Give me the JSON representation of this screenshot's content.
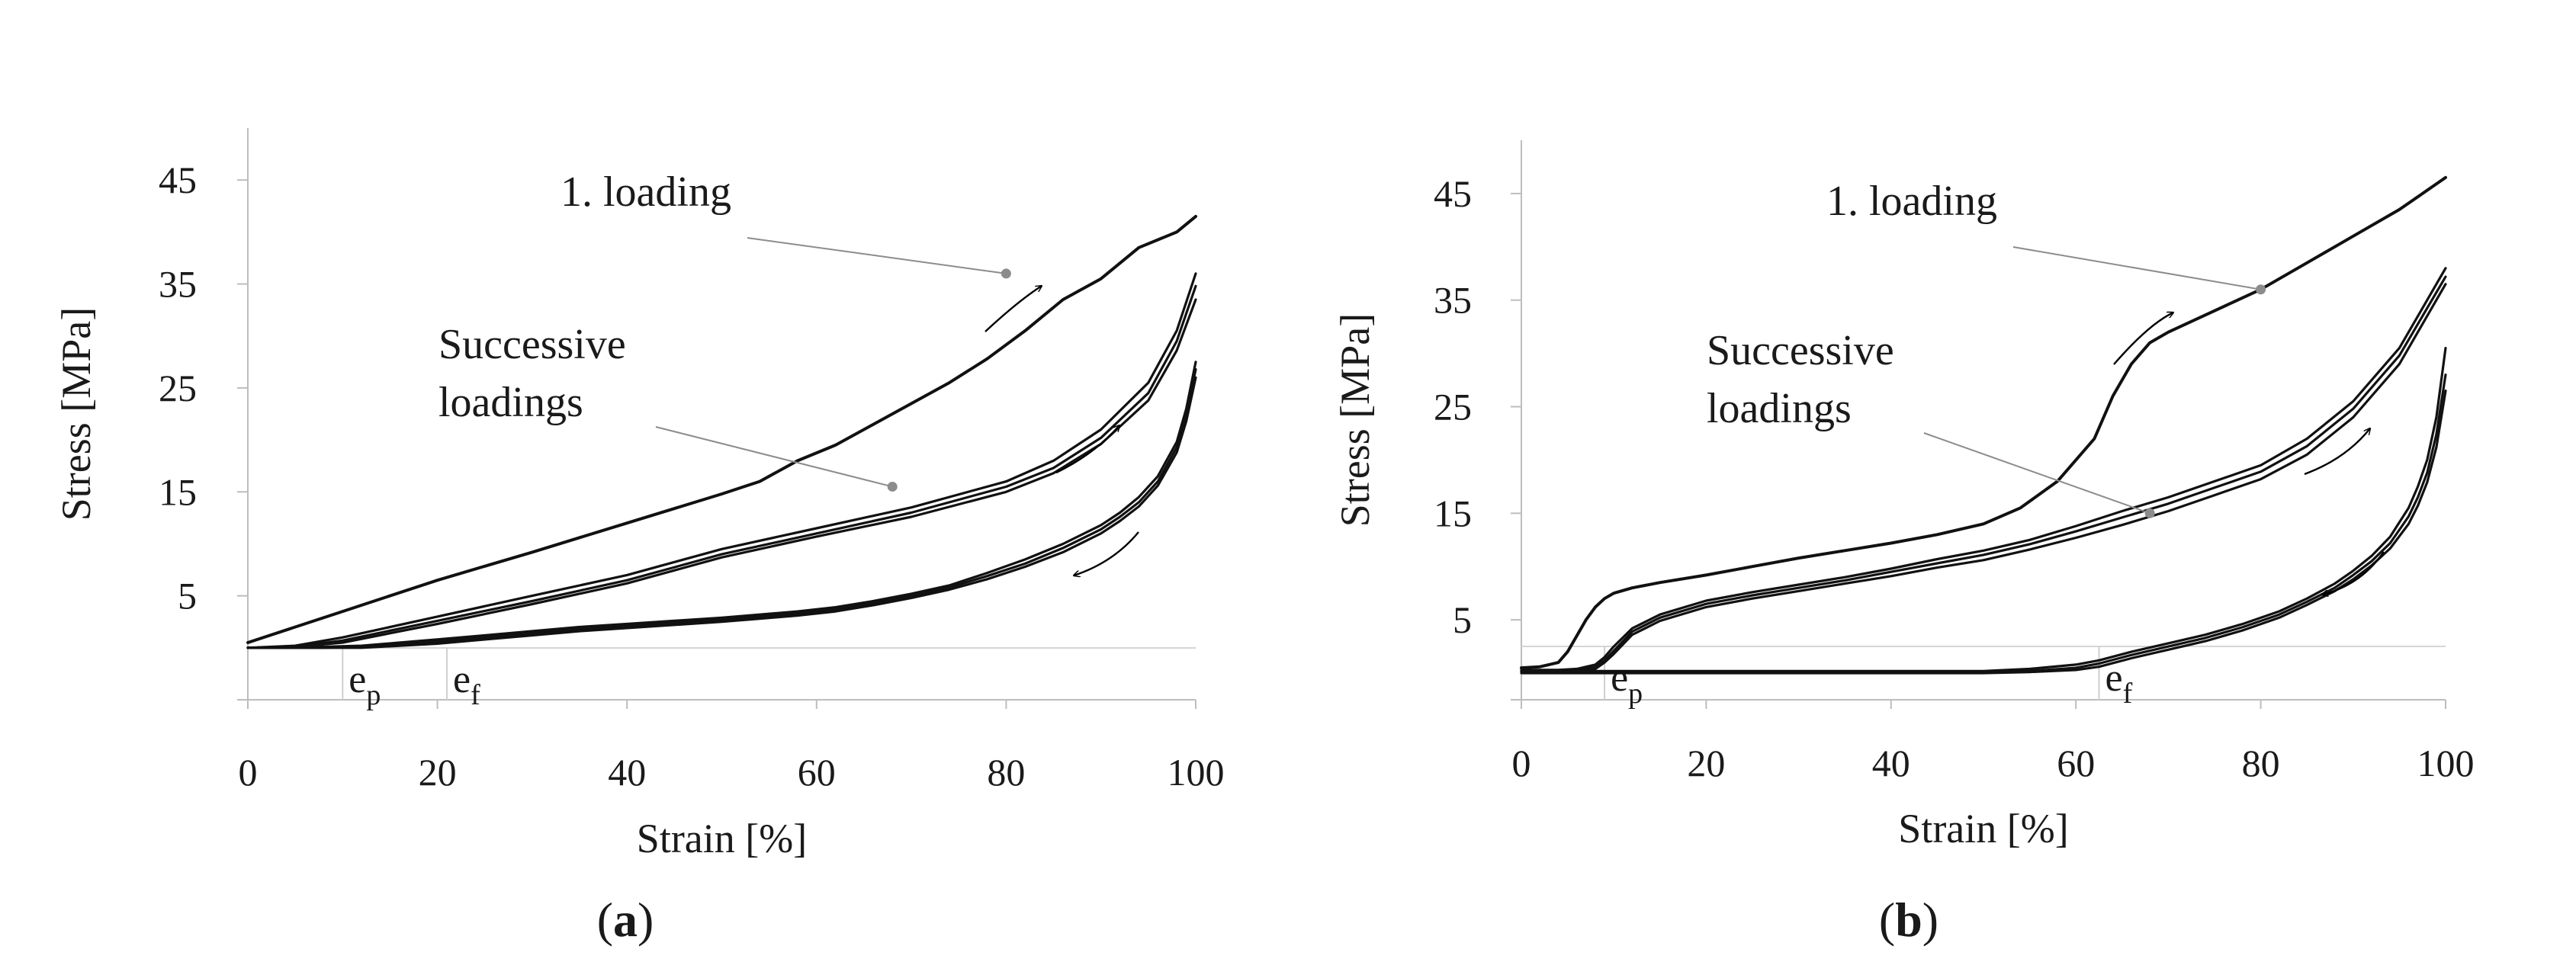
{
  "chart_data": [
    {
      "type": "line",
      "panel_label": "a",
      "xlabel": "Strain [%]",
      "ylabel": "Stress [MPa]",
      "xlim": [
        0,
        100
      ],
      "ylim": [
        -5,
        50
      ],
      "xticks": [
        "0",
        "20",
        "40",
        "60",
        "80",
        "100"
      ],
      "yticks": [
        "5",
        "15",
        "25",
        "35",
        "45"
      ],
      "markers": [
        {
          "base": "e",
          "sub": "p",
          "x": 10
        },
        {
          "base": "e",
          "sub": "f",
          "x": 21
        }
      ],
      "annotations": [
        {
          "lines": [
            "1. loading"
          ],
          "point": [
            80,
            36
          ]
        },
        {
          "lines": [
            "Successive",
            "loadings"
          ],
          "point": [
            68,
            15.5
          ]
        }
      ],
      "series": [
        {
          "name": "1. loading",
          "x": [
            0,
            10,
            20,
            30,
            40,
            50,
            54,
            58,
            62,
            66,
            70,
            74,
            78,
            82,
            86,
            90,
            94,
            98,
            100
          ],
          "y": [
            0.5,
            3.5,
            6.5,
            9.2,
            12.0,
            14.8,
            16.0,
            18.0,
            19.5,
            21.5,
            23.5,
            25.5,
            27.8,
            30.5,
            33.5,
            35.5,
            38.5,
            40.0,
            41.5
          ]
        },
        {
          "name": "Successive loading 1",
          "x": [
            0,
            5,
            10,
            20,
            30,
            40,
            50,
            60,
            70,
            80,
            85,
            90,
            95,
            98,
            100
          ],
          "y": [
            0,
            0.2,
            1.0,
            3.0,
            5.0,
            7.0,
            9.5,
            11.5,
            13.5,
            16.0,
            18.0,
            21.0,
            25.5,
            30.5,
            36.0
          ]
        },
        {
          "name": "Successive loading 2",
          "x": [
            0,
            5,
            10,
            20,
            30,
            40,
            50,
            60,
            70,
            80,
            85,
            90,
            95,
            98,
            100
          ],
          "y": [
            0,
            0.1,
            0.7,
            2.6,
            4.5,
            6.5,
            9.0,
            11.0,
            13.0,
            15.5,
            17.3,
            20.2,
            24.5,
            29.5,
            34.8
          ]
        },
        {
          "name": "Successive loading 3",
          "x": [
            0,
            5,
            10,
            20,
            30,
            40,
            50,
            60,
            70,
            80,
            85,
            90,
            95,
            98,
            100
          ],
          "y": [
            0,
            0.1,
            0.5,
            2.3,
            4.2,
            6.2,
            8.7,
            10.7,
            12.6,
            15.0,
            16.8,
            19.6,
            23.8,
            28.6,
            33.5
          ]
        },
        {
          "name": "Unloading 1",
          "x": [
            100,
            99,
            98,
            96,
            94,
            92,
            90,
            86,
            82,
            78,
            74,
            70,
            66,
            62,
            58,
            54,
            50,
            45,
            40,
            35,
            30,
            25,
            20,
            16,
            12,
            8,
            4,
            0
          ],
          "y": [
            27.5,
            23.0,
            19.8,
            16.5,
            14.5,
            13.0,
            11.8,
            10.0,
            8.5,
            7.2,
            6.0,
            5.2,
            4.5,
            3.9,
            3.5,
            3.2,
            2.9,
            2.6,
            2.3,
            2.0,
            1.6,
            1.2,
            0.8,
            0.5,
            0.2,
            0.1,
            0,
            0
          ]
        },
        {
          "name": "Unloading 2",
          "x": [
            100,
            99,
            98,
            96,
            94,
            92,
            90,
            86,
            82,
            78,
            74,
            70,
            66,
            62,
            58,
            54,
            50,
            45,
            40,
            35,
            30,
            25,
            20,
            16,
            12,
            8,
            4,
            0
          ],
          "y": [
            26.8,
            22.4,
            19.3,
            16.0,
            14.0,
            12.6,
            11.4,
            9.6,
            8.1,
            6.9,
            5.8,
            5.0,
            4.3,
            3.7,
            3.3,
            3.0,
            2.7,
            2.4,
            2.1,
            1.8,
            1.4,
            1.0,
            0.6,
            0.3,
            0.1,
            0,
            0,
            0
          ]
        },
        {
          "name": "Unloading 3",
          "x": [
            100,
            99,
            98,
            96,
            94,
            92,
            90,
            86,
            82,
            78,
            74,
            70,
            66,
            62,
            58,
            54,
            50,
            45,
            40,
            35,
            30,
            25,
            20,
            16,
            12,
            8,
            4,
            0
          ],
          "y": [
            26.0,
            21.8,
            18.8,
            15.6,
            13.6,
            12.2,
            11.0,
            9.2,
            7.8,
            6.6,
            5.6,
            4.8,
            4.1,
            3.5,
            3.1,
            2.8,
            2.5,
            2.2,
            1.9,
            1.6,
            1.2,
            0.8,
            0.4,
            0.2,
            0,
            0,
            0,
            0
          ]
        }
      ]
    },
    {
      "type": "line",
      "panel_label": "b",
      "xlabel": "Strain [%]",
      "ylabel": "Stress [MPa]",
      "xlim": [
        0,
        100
      ],
      "ylim": [
        -2.5,
        50
      ],
      "xticks": [
        "0",
        "20",
        "40",
        "60",
        "80",
        "100"
      ],
      "yticks": [
        "5",
        "15",
        "25",
        "35",
        "45"
      ],
      "markers": [
        {
          "base": "e",
          "sub": "p",
          "x": 9
        },
        {
          "base": "e",
          "sub": "f",
          "x": 62.5
        }
      ],
      "annotations": [
        {
          "lines": [
            "1. loading"
          ],
          "point": [
            80,
            36
          ]
        },
        {
          "lines": [
            "Successive",
            "loadings"
          ],
          "point": [
            68,
            15
          ]
        }
      ],
      "series": [
        {
          "name": "1. loading",
          "x": [
            0,
            2,
            4,
            5,
            6,
            7,
            8,
            9,
            10,
            12,
            15,
            20,
            25,
            30,
            35,
            40,
            45,
            50,
            54,
            58,
            62,
            64,
            66,
            68,
            70,
            75,
            80,
            85,
            90,
            95,
            100
          ],
          "y": [
            0.5,
            0.6,
            1.0,
            2.0,
            3.5,
            5.0,
            6.2,
            7.0,
            7.5,
            8.0,
            8.5,
            9.2,
            10.0,
            10.8,
            11.5,
            12.2,
            13.0,
            14.0,
            15.5,
            18.0,
            22.0,
            26.0,
            29.0,
            31.0,
            32.0,
            34.0,
            36.0,
            38.5,
            41.0,
            43.5,
            46.5
          ]
        },
        {
          "name": "Successive loading 1",
          "x": [
            0,
            4,
            6,
            8,
            9,
            10,
            12,
            15,
            20,
            25,
            30,
            35,
            40,
            45,
            50,
            55,
            60,
            65,
            70,
            75,
            80,
            85,
            90,
            95,
            100
          ],
          "y": [
            0.3,
            0.3,
            0.4,
            0.8,
            1.5,
            2.5,
            4.2,
            5.5,
            6.8,
            7.6,
            8.3,
            9.0,
            9.8,
            10.7,
            11.5,
            12.5,
            13.8,
            15.2,
            16.5,
            18.0,
            19.5,
            22.0,
            25.5,
            30.5,
            38.0
          ]
        },
        {
          "name": "Successive loading 2",
          "x": [
            0,
            4,
            6,
            8,
            9,
            10,
            12,
            15,
            20,
            25,
            30,
            35,
            40,
            45,
            50,
            55,
            60,
            65,
            70,
            75,
            80,
            85,
            90,
            95,
            100
          ],
          "y": [
            0.2,
            0.2,
            0.3,
            0.6,
            1.2,
            2.1,
            3.9,
            5.2,
            6.5,
            7.3,
            8.0,
            8.7,
            9.5,
            10.3,
            11.1,
            12.1,
            13.3,
            14.6,
            15.9,
            17.4,
            18.9,
            21.3,
            24.8,
            29.8,
            37.2
          ]
        },
        {
          "name": "Successive loading 3",
          "x": [
            0,
            4,
            6,
            8,
            9,
            10,
            12,
            15,
            20,
            25,
            30,
            35,
            40,
            45,
            50,
            55,
            60,
            65,
            70,
            75,
            80,
            85,
            90,
            95,
            100
          ],
          "y": [
            0.2,
            0.2,
            0.2,
            0.4,
            1.0,
            1.8,
            3.6,
            4.9,
            6.2,
            7.0,
            7.7,
            8.4,
            9.1,
            9.9,
            10.6,
            11.6,
            12.7,
            13.9,
            15.2,
            16.7,
            18.2,
            20.5,
            24.0,
            29.0,
            36.5
          ]
        },
        {
          "name": "Unloading 1",
          "x": [
            100,
            99,
            98,
            97,
            96,
            94,
            92,
            90,
            88,
            85,
            82,
            78,
            74,
            70,
            66,
            62.5,
            60,
            55,
            50,
            40,
            30,
            20,
            10,
            0
          ],
          "y": [
            30.5,
            24.0,
            20.0,
            17.5,
            15.5,
            12.8,
            11.0,
            9.6,
            8.4,
            7.0,
            5.8,
            4.6,
            3.6,
            2.8,
            2.0,
            1.2,
            0.8,
            0.4,
            0.2,
            0.2,
            0.2,
            0.2,
            0.2,
            0.2
          ]
        },
        {
          "name": "Unloading 2",
          "x": [
            100,
            99,
            98,
            97,
            96,
            94,
            92,
            90,
            88,
            85,
            82,
            78,
            74,
            70,
            66,
            62.5,
            60,
            55,
            50,
            40,
            30,
            20,
            10,
            0
          ],
          "y": [
            28.0,
            22.4,
            18.8,
            16.5,
            14.7,
            12.2,
            10.5,
            9.2,
            8.0,
            6.7,
            5.5,
            4.3,
            3.3,
            2.5,
            1.7,
            0.9,
            0.5,
            0.2,
            0.1,
            0.1,
            0.1,
            0.1,
            0.1,
            0.1
          ]
        },
        {
          "name": "Unloading 3",
          "x": [
            100,
            99,
            98,
            97,
            96,
            94,
            92,
            90,
            88,
            85,
            82,
            78,
            74,
            70,
            66,
            62.5,
            60,
            55,
            50,
            40,
            30,
            20,
            10,
            0
          ],
          "y": [
            26.5,
            21.2,
            17.9,
            15.7,
            14.0,
            11.7,
            10.1,
            8.8,
            7.7,
            6.4,
            5.2,
            4.0,
            3.0,
            2.2,
            1.4,
            0.6,
            0.3,
            0.1,
            0,
            0,
            0,
            0,
            0,
            0
          ]
        }
      ]
    }
  ]
}
